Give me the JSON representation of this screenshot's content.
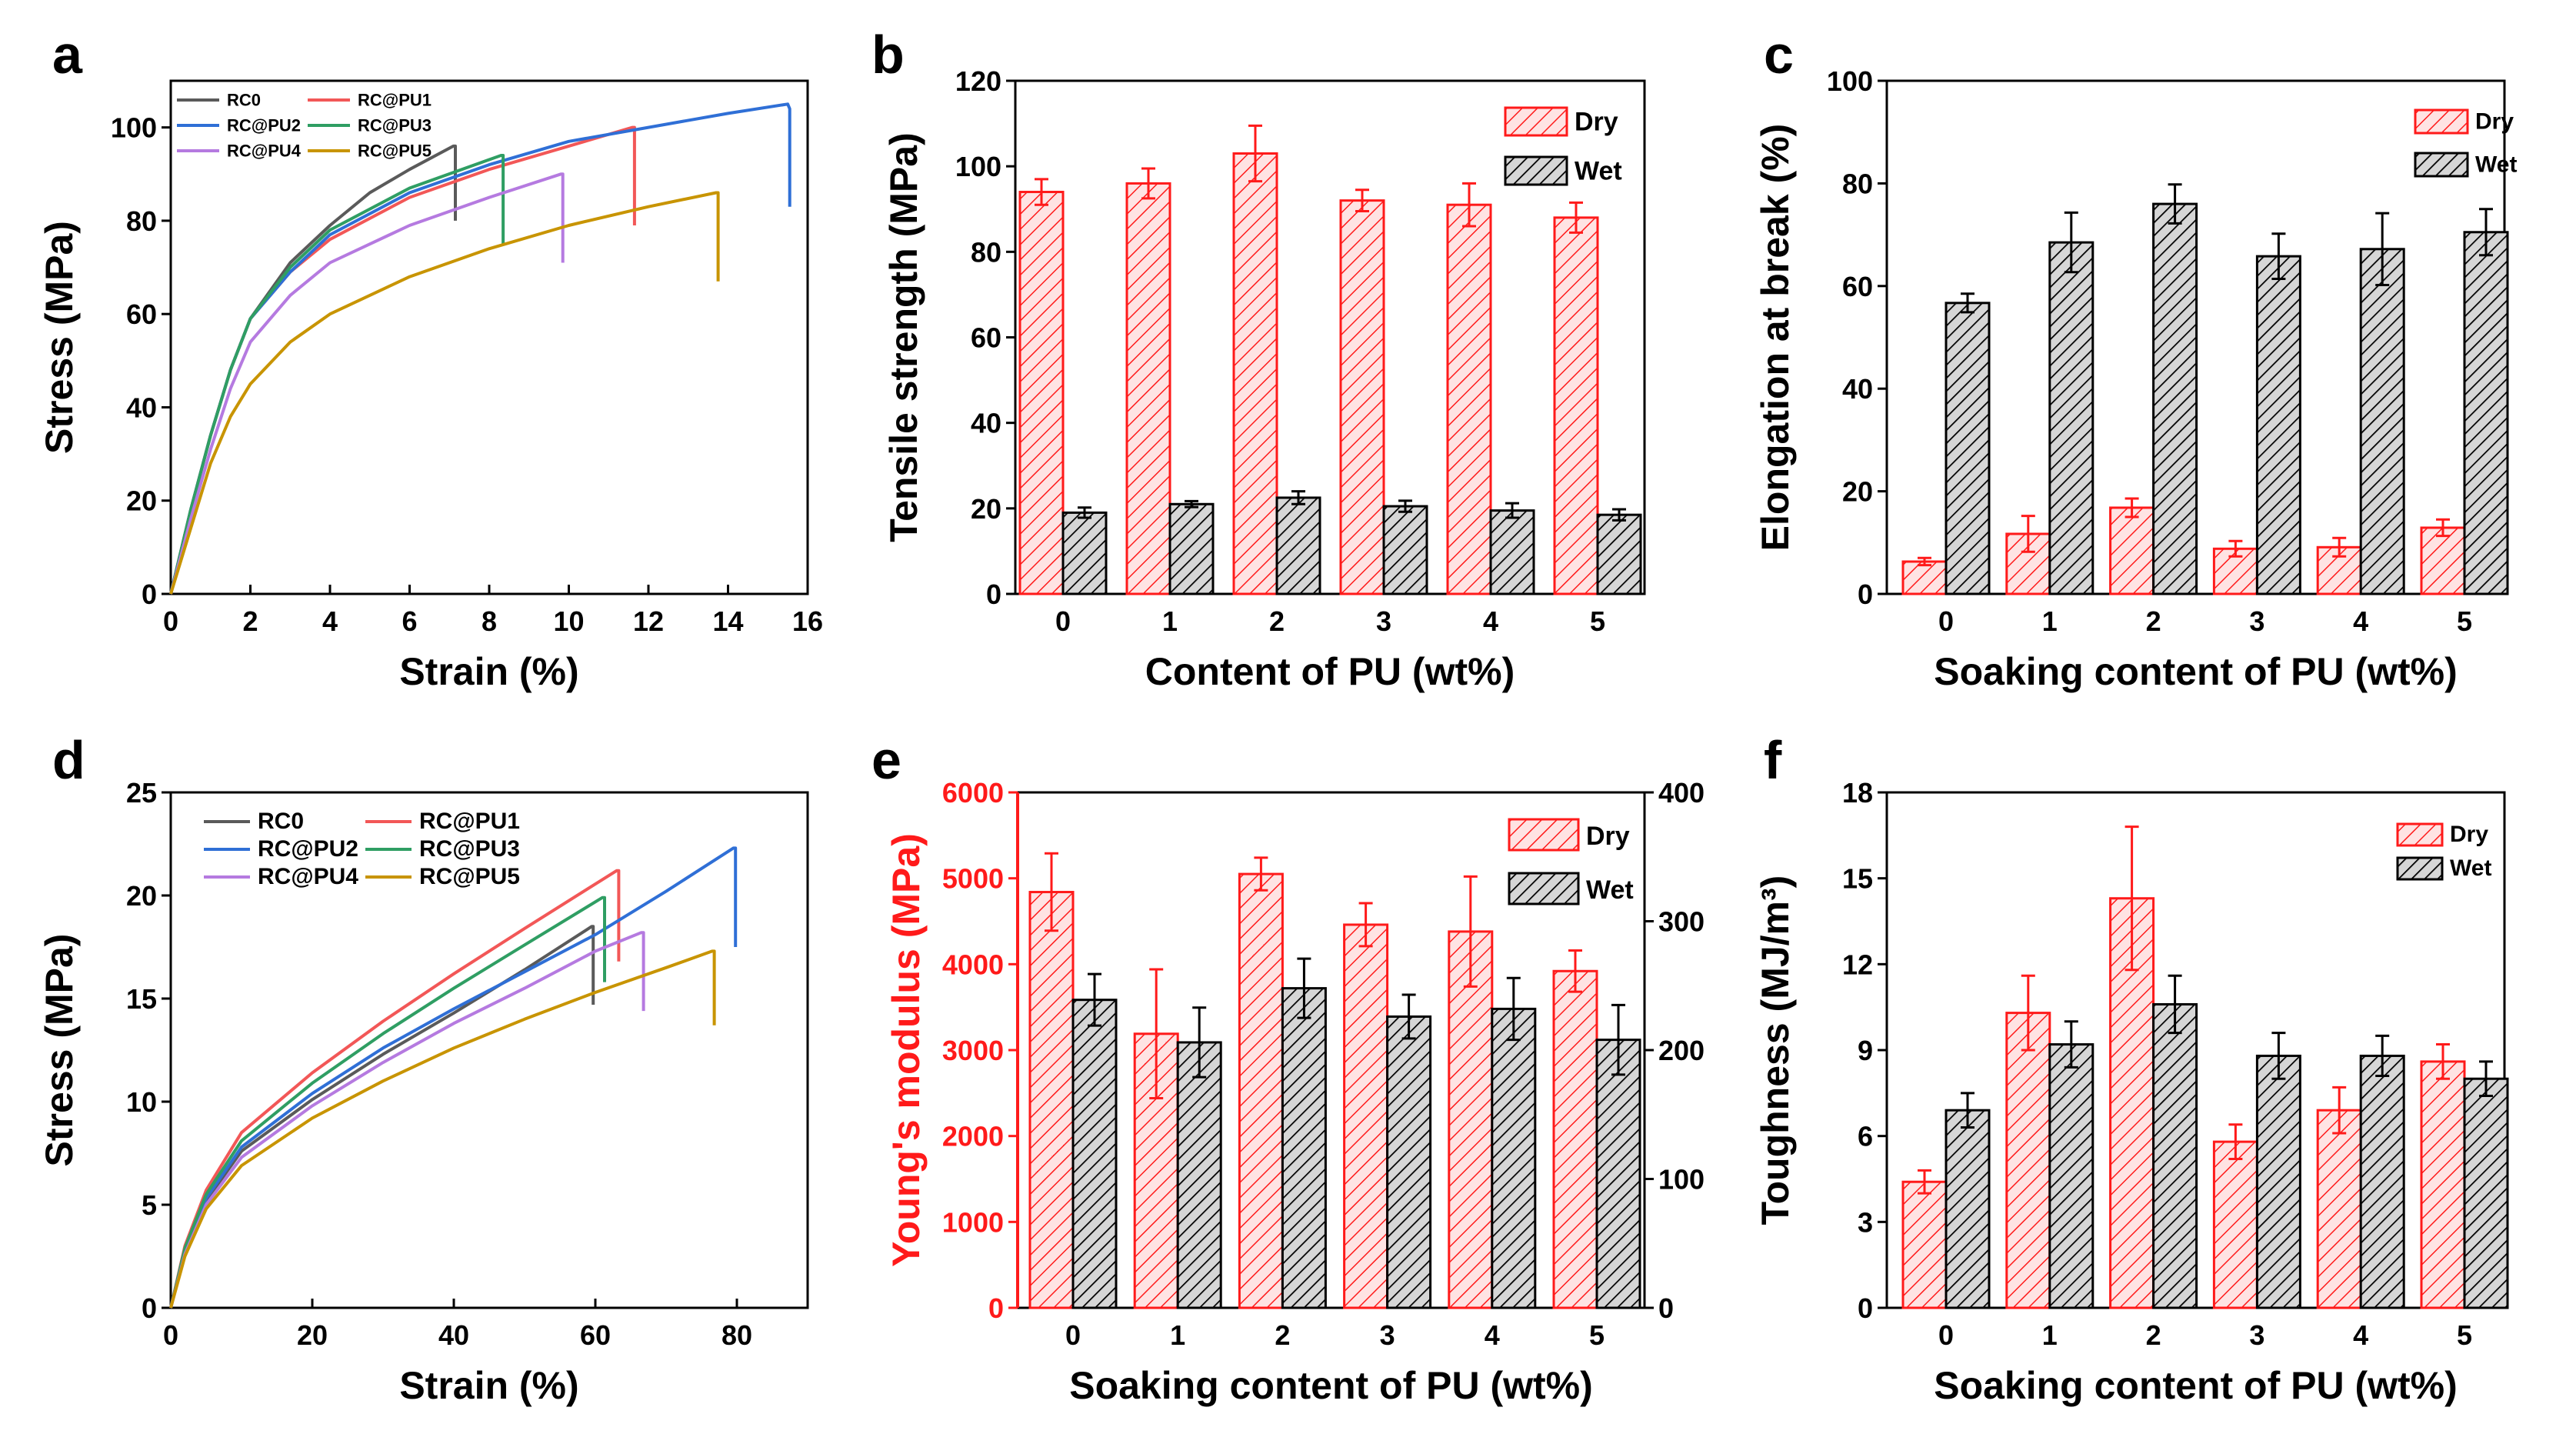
{
  "colors": {
    "dry": "#ff1a1a",
    "wet": "#000000",
    "RC0": "#5a5a5a",
    "RC@PU1": "#f25757",
    "RC@PU2": "#2f6fd6",
    "RC@PU3": "#2f9e63",
    "RC@PU4": "#b57ae0",
    "RC@PU5": "#c89400"
  },
  "chart_data": [
    {
      "panel": "a",
      "type": "line",
      "title": "",
      "xlabel": "Strain (%)",
      "ylabel": "Stress (MPa)",
      "xlim": [
        0,
        16
      ],
      "ylim": [
        0,
        110
      ],
      "xticks": [
        0,
        2,
        4,
        6,
        8,
        10,
        12,
        14,
        16
      ],
      "yticks": [
        0,
        20,
        40,
        60,
        80,
        100
      ],
      "legend_position": "top-left",
      "series": [
        {
          "name": "RC0",
          "x": [
            0,
            0.5,
            1,
            1.5,
            2,
            3,
            4,
            5,
            6,
            7.1,
            7.15,
            7.15
          ],
          "y": [
            0,
            18,
            34,
            48,
            59,
            71,
            79,
            86,
            91,
            96,
            96,
            80
          ]
        },
        {
          "name": "RC@PU1",
          "x": [
            0,
            0.5,
            1,
            1.5,
            2,
            3,
            4,
            6,
            8,
            10,
            11.6,
            11.65,
            11.65
          ],
          "y": [
            0,
            18,
            34,
            48,
            59,
            69,
            76,
            85,
            91,
            96,
            100,
            100,
            79
          ]
        },
        {
          "name": "RC@PU2",
          "x": [
            0,
            0.5,
            1,
            1.5,
            2,
            3,
            4,
            6,
            8,
            10,
            12,
            14,
            15.5,
            15.55,
            15.55
          ],
          "y": [
            0,
            18,
            34,
            48,
            59,
            69,
            77,
            86,
            92,
            97,
            100,
            103,
            105,
            104,
            83
          ]
        },
        {
          "name": "RC@PU3",
          "x": [
            0,
            0.5,
            1,
            1.5,
            2,
            3,
            4,
            6,
            8.3,
            8.35,
            8.35
          ],
          "y": [
            0,
            18,
            34,
            48,
            59,
            70,
            78,
            87,
            94,
            94,
            75
          ]
        },
        {
          "name": "RC@PU4",
          "x": [
            0,
            0.5,
            1,
            1.5,
            2,
            3,
            4,
            6,
            8,
            9.8,
            9.85,
            9.85
          ],
          "y": [
            0,
            16,
            31,
            44,
            54,
            64,
            71,
            79,
            85,
            90,
            90,
            71
          ]
        },
        {
          "name": "RC@PU5",
          "x": [
            0,
            0.5,
            1,
            1.5,
            2,
            3,
            4,
            6,
            8,
            10,
            12,
            13.7,
            13.75,
            13.75
          ],
          "y": [
            0,
            14,
            28,
            38,
            45,
            54,
            60,
            68,
            74,
            79,
            83,
            86,
            86,
            67
          ]
        }
      ]
    },
    {
      "panel": "b",
      "type": "bar",
      "title": "",
      "xlabel": "Content of PU (wt%)",
      "ylabel": "Tensile strength (MPa)",
      "categories": [
        "0",
        "1",
        "2",
        "3",
        "4",
        "5"
      ],
      "ylim": [
        0,
        120
      ],
      "yticks": [
        0,
        20,
        40,
        60,
        80,
        100,
        120
      ],
      "legend_position": "top-right",
      "series": [
        {
          "name": "Dry",
          "values": [
            94,
            96,
            103,
            92,
            91,
            88
          ],
          "errors": [
            3,
            3.5,
            6.5,
            2.5,
            5,
            3.5
          ]
        },
        {
          "name": "Wet",
          "values": [
            19,
            21,
            22.5,
            20.5,
            19.5,
            18.5
          ],
          "errors": [
            1.2,
            0.7,
            1.5,
            1.3,
            1.7,
            1.3
          ]
        }
      ]
    },
    {
      "panel": "c",
      "type": "bar",
      "title": "",
      "xlabel": "Soaking content of PU (wt%)",
      "ylabel": "Elongation at break (%)",
      "categories": [
        "0",
        "1",
        "2",
        "3",
        "4",
        "5"
      ],
      "ylim": [
        0,
        100
      ],
      "yticks": [
        0,
        20,
        40,
        60,
        80,
        100
      ],
      "legend_position": "top-right",
      "series": [
        {
          "name": "Dry",
          "values": [
            6.3,
            11.7,
            16.8,
            8.8,
            9.1,
            12.9
          ],
          "errors": [
            0.7,
            3.5,
            1.8,
            1.5,
            1.8,
            1.6
          ]
        },
        {
          "name": "Wet",
          "values": [
            56.7,
            68.5,
            76,
            65.8,
            67.2,
            70.5
          ],
          "errors": [
            1.8,
            5.8,
            3.8,
            4.4,
            7,
            4.5
          ]
        }
      ]
    },
    {
      "panel": "d",
      "type": "line",
      "title": "",
      "xlabel": "Strain (%)",
      "ylabel": "Stress (MPa)",
      "xlim": [
        0,
        90
      ],
      "ylim": [
        0,
        25
      ],
      "xticks": [
        0,
        20,
        40,
        60,
        80
      ],
      "yticks": [
        0,
        5,
        10,
        15,
        20,
        25
      ],
      "legend_position": "top",
      "series": [
        {
          "name": "RC0",
          "x": [
            0,
            2,
            5,
            10,
            20,
            30,
            40,
            50,
            59.5,
            59.7,
            59.7
          ],
          "y": [
            0,
            2.8,
            5.2,
            7.6,
            10.1,
            12.3,
            14.3,
            16.4,
            18.5,
            18.5,
            14.7
          ]
        },
        {
          "name": "RC@PU1",
          "x": [
            0,
            2,
            5,
            10,
            20,
            30,
            40,
            50,
            63,
            63.3,
            63.3
          ],
          "y": [
            0,
            3,
            5.7,
            8.5,
            11.4,
            13.9,
            16.2,
            18.4,
            21.2,
            21.2,
            16.8
          ]
        },
        {
          "name": "RC@PU2",
          "x": [
            0,
            2,
            5,
            10,
            20,
            30,
            40,
            50,
            60,
            70,
            79.5,
            79.8,
            79.8
          ],
          "y": [
            0,
            2.8,
            5.3,
            7.8,
            10.4,
            12.6,
            14.5,
            16.3,
            18.1,
            20.2,
            22.3,
            22.3,
            17.5
          ]
        },
        {
          "name": "RC@PU3",
          "x": [
            0,
            2,
            5,
            10,
            20,
            30,
            40,
            50,
            61,
            61.3,
            61.3
          ],
          "y": [
            0,
            2.9,
            5.5,
            8.1,
            10.9,
            13.3,
            15.5,
            17.6,
            19.9,
            19.9,
            15.8
          ]
        },
        {
          "name": "RC@PU4",
          "x": [
            0,
            2,
            5,
            10,
            20,
            30,
            40,
            50,
            60,
            66.5,
            66.8,
            66.8
          ],
          "y": [
            0,
            2.6,
            5,
            7.3,
            9.8,
            11.9,
            13.8,
            15.5,
            17.3,
            18.2,
            18.2,
            14.4
          ]
        },
        {
          "name": "RC@PU5",
          "x": [
            0,
            2,
            5,
            10,
            20,
            30,
            40,
            50,
            60,
            70,
            76.5,
            76.8,
            76.8
          ],
          "y": [
            0,
            2.5,
            4.8,
            6.9,
            9.2,
            11,
            12.6,
            14,
            15.3,
            16.5,
            17.3,
            17.3,
            13.7
          ]
        }
      ]
    },
    {
      "panel": "e",
      "type": "bar",
      "title": "",
      "xlabel": "Soaking content of PU (wt%)",
      "ylabel": "Young's modulus (MPa)",
      "y2label": "",
      "categories": [
        "0",
        "1",
        "2",
        "3",
        "4",
        "5"
      ],
      "ylim": [
        0,
        6000
      ],
      "yticks": [
        0,
        1000,
        2000,
        3000,
        4000,
        5000,
        6000
      ],
      "y2lim": [
        0,
        400
      ],
      "y2ticks": [
        0,
        100,
        200,
        300,
        400
      ],
      "legend_position": "top-right",
      "series": [
        {
          "name": "Dry",
          "axis": "left",
          "values": [
            4840,
            3190,
            5050,
            4460,
            4380,
            3920
          ],
          "errors": [
            450,
            750,
            190,
            250,
            640,
            240
          ]
        },
        {
          "name": "Wet",
          "axis": "right",
          "values": [
            239,
            206,
            248,
            226,
            232,
            208
          ],
          "errors": [
            20,
            27,
            23,
            17,
            24,
            27
          ]
        }
      ]
    },
    {
      "panel": "f",
      "type": "bar",
      "title": "",
      "xlabel": "Soaking content of PU (wt%)",
      "ylabel": "Toughness (MJ/m³)",
      "categories": [
        "0",
        "1",
        "2",
        "3",
        "4",
        "5"
      ],
      "ylim": [
        0,
        18
      ],
      "yticks": [
        0,
        3,
        6,
        9,
        12,
        15,
        18
      ],
      "legend_position": "top-right",
      "series": [
        {
          "name": "Dry",
          "values": [
            4.4,
            10.3,
            14.3,
            5.8,
            6.9,
            8.6
          ],
          "errors": [
            0.4,
            1.3,
            2.5,
            0.6,
            0.8,
            0.6
          ]
        },
        {
          "name": "Wet",
          "values": [
            6.9,
            9.2,
            10.6,
            8.8,
            8.8,
            8.0
          ],
          "errors": [
            0.6,
            0.8,
            1.0,
            0.8,
            0.7,
            0.6
          ]
        }
      ]
    }
  ]
}
